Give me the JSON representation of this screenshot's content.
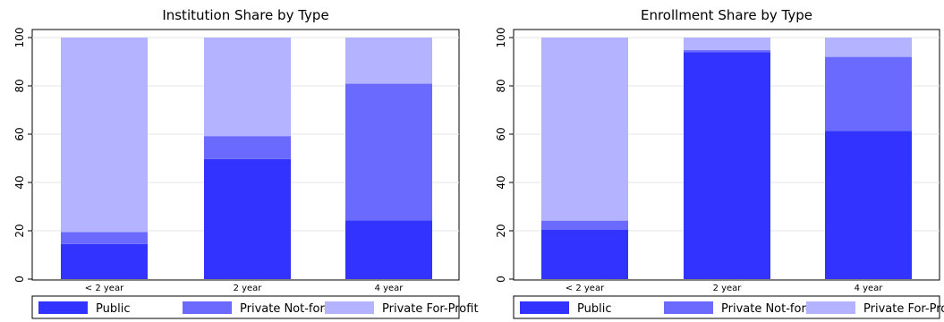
{
  "colors": {
    "Public": "#3333ff",
    "Private Not-for-Profit": "#6a6aff",
    "Private For-Profit": "#b3b3ff"
  },
  "chart_data": [
    {
      "type": "bar",
      "stacked": true,
      "title": "Institution Share by Type",
      "xlabel": "",
      "ylabel": "",
      "ylim": [
        0,
        100
      ],
      "yticks": [
        "0",
        "20",
        "40",
        "60",
        "80",
        "100"
      ],
      "grid": true,
      "legend": "bottom",
      "categories": [
        "< 2 year",
        "2 year",
        "4 year"
      ],
      "series": [
        {
          "name": "Public",
          "values": [
            14.5,
            49.7,
            24.3
          ]
        },
        {
          "name": "Private Not-for-Profit",
          "values": [
            5.0,
            9.5,
            56.6
          ]
        },
        {
          "name": "Private For-Profit",
          "values": [
            80.5,
            40.8,
            19.1
          ]
        }
      ]
    },
    {
      "type": "bar",
      "stacked": true,
      "title": "Enrollment Share by Type",
      "xlabel": "",
      "ylabel": "",
      "ylim": [
        0,
        100
      ],
      "yticks": [
        "0",
        "20",
        "40",
        "60",
        "80",
        "100"
      ],
      "grid": true,
      "legend": "bottom",
      "categories": [
        "< 2 year",
        "2 year",
        "4 year"
      ],
      "series": [
        {
          "name": "Public",
          "values": [
            20.5,
            94.0,
            61.4
          ]
        },
        {
          "name": "Private Not-for-Profit",
          "values": [
            3.7,
            0.8,
            30.6
          ]
        },
        {
          "name": "Private For-Profit",
          "values": [
            75.8,
            5.2,
            8.0
          ]
        }
      ]
    }
  ]
}
